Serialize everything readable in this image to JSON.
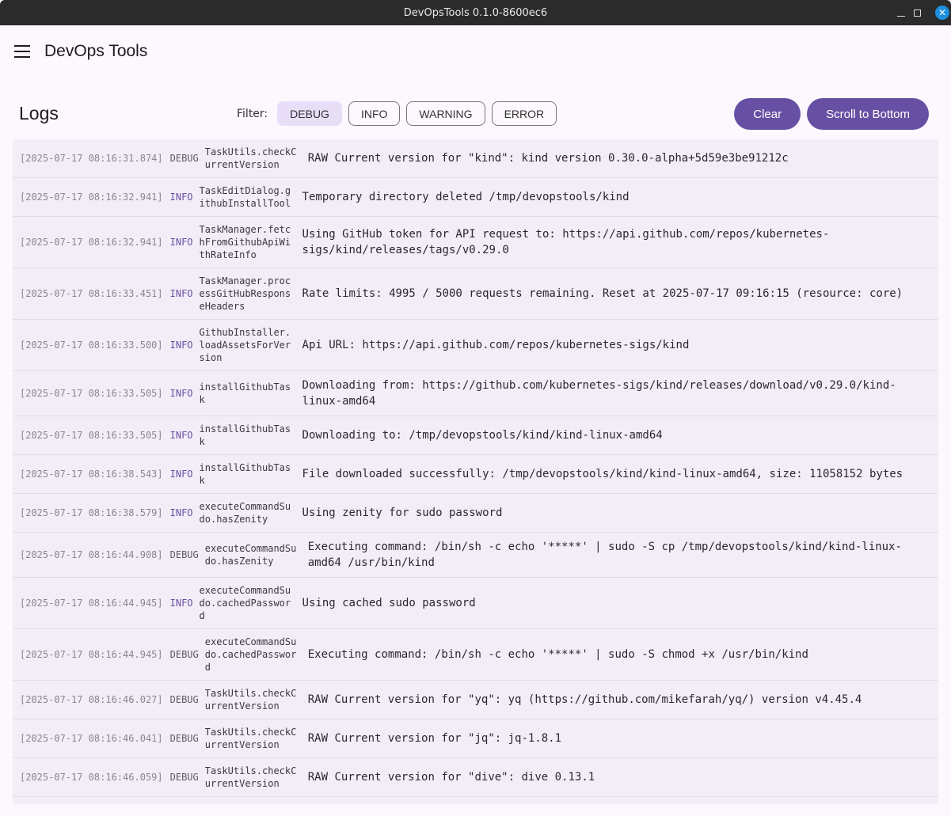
{
  "window": {
    "title": "DevOpsTools 0.1.0-8600ec6",
    "close": "✕"
  },
  "appbar": {
    "title": "DevOps Tools"
  },
  "toolbar": {
    "title": "Logs",
    "filter_label": "Filter:",
    "filters": [
      {
        "label": "DEBUG",
        "selected": true
      },
      {
        "label": "INFO",
        "selected": false
      },
      {
        "label": "WARNING",
        "selected": false
      },
      {
        "label": "ERROR",
        "selected": false
      }
    ],
    "clear": "Clear",
    "scroll_bottom": "Scroll to Bottom"
  },
  "colors": {
    "primary": "#6750a4",
    "selected_chip": "#e8def8",
    "info_level": "#6750a4"
  },
  "logs": [
    {
      "ts": "[2025-07-17 08:16:31.874]",
      "level": "DEBUG",
      "source": "TaskUtils.checkCurrentVersion",
      "message": "RAW Current version for \"kind\": kind version 0.30.0-alpha+5d59e3be91212c"
    },
    {
      "ts": "[2025-07-17 08:16:32.941]",
      "level": "INFO",
      "source": "TaskEditDialog.githubInstallTool",
      "message": "Temporary directory deleted /tmp/devopstools/kind"
    },
    {
      "ts": "[2025-07-17 08:16:32.941]",
      "level": "INFO",
      "source": "TaskManager.fetchFromGithubApiWithRateInfo",
      "message": "Using GitHub token for API request to: https://api.github.com/repos/kubernetes-sigs/kind/releases/tags/v0.29.0"
    },
    {
      "ts": "[2025-07-17 08:16:33.451]",
      "level": "INFO",
      "source": "TaskManager.processGitHubResponseHeaders",
      "message": "Rate limits: 4995 / 5000 requests remaining. Reset at 2025-07-17 09:16:15 (resource: core)"
    },
    {
      "ts": "[2025-07-17 08:16:33.500]",
      "level": "INFO",
      "source": "GithubInstaller.loadAssetsForVersion",
      "message": "Api URL: https://api.github.com/repos/kubernetes-sigs/kind"
    },
    {
      "ts": "[2025-07-17 08:16:33.505]",
      "level": "INFO",
      "source": "installGithubTask",
      "message": "Downloading from: https://github.com/kubernetes-sigs/kind/releases/download/v0.29.0/kind-linux-amd64"
    },
    {
      "ts": "[2025-07-17 08:16:33.505]",
      "level": "INFO",
      "source": "installGithubTask",
      "message": "Downloading to: /tmp/devopstools/kind/kind-linux-amd64"
    },
    {
      "ts": "[2025-07-17 08:16:38.543]",
      "level": "INFO",
      "source": "installGithubTask",
      "message": "File downloaded successfully: /tmp/devopstools/kind/kind-linux-amd64, size: 11058152 bytes"
    },
    {
      "ts": "[2025-07-17 08:16:38.579]",
      "level": "INFO",
      "source": "executeCommandSudo.hasZenity",
      "message": "Using zenity for sudo password"
    },
    {
      "ts": "[2025-07-17 08:16:44.908]",
      "level": "DEBUG",
      "source": "executeCommandSudo.hasZenity",
      "message": "Executing command: /bin/sh -c echo '*****' | sudo -S cp /tmp/devopstools/kind/kind-linux-amd64 /usr/bin/kind"
    },
    {
      "ts": "[2025-07-17 08:16:44.945]",
      "level": "INFO",
      "source": "executeCommandSudo.cachedPassword",
      "message": "Using cached sudo password"
    },
    {
      "ts": "[2025-07-17 08:16:44.945]",
      "level": "DEBUG",
      "source": "executeCommandSudo.cachedPassword",
      "message": "Executing command: /bin/sh -c echo '*****' | sudo -S chmod +x /usr/bin/kind"
    },
    {
      "ts": "[2025-07-17 08:16:46.027]",
      "level": "DEBUG",
      "source": "TaskUtils.checkCurrentVersion",
      "message": "RAW Current version for \"yq\": yq (https://github.com/mikefarah/yq/) version v4.45.4"
    },
    {
      "ts": "[2025-07-17 08:16:46.041]",
      "level": "DEBUG",
      "source": "TaskUtils.checkCurrentVersion",
      "message": "RAW Current version for \"jq\": jq-1.8.1"
    },
    {
      "ts": "[2025-07-17 08:16:46.059]",
      "level": "DEBUG",
      "source": "TaskUtils.checkCurrentVersion",
      "message": "RAW Current version for \"dive\": dive 0.13.1"
    }
  ]
}
